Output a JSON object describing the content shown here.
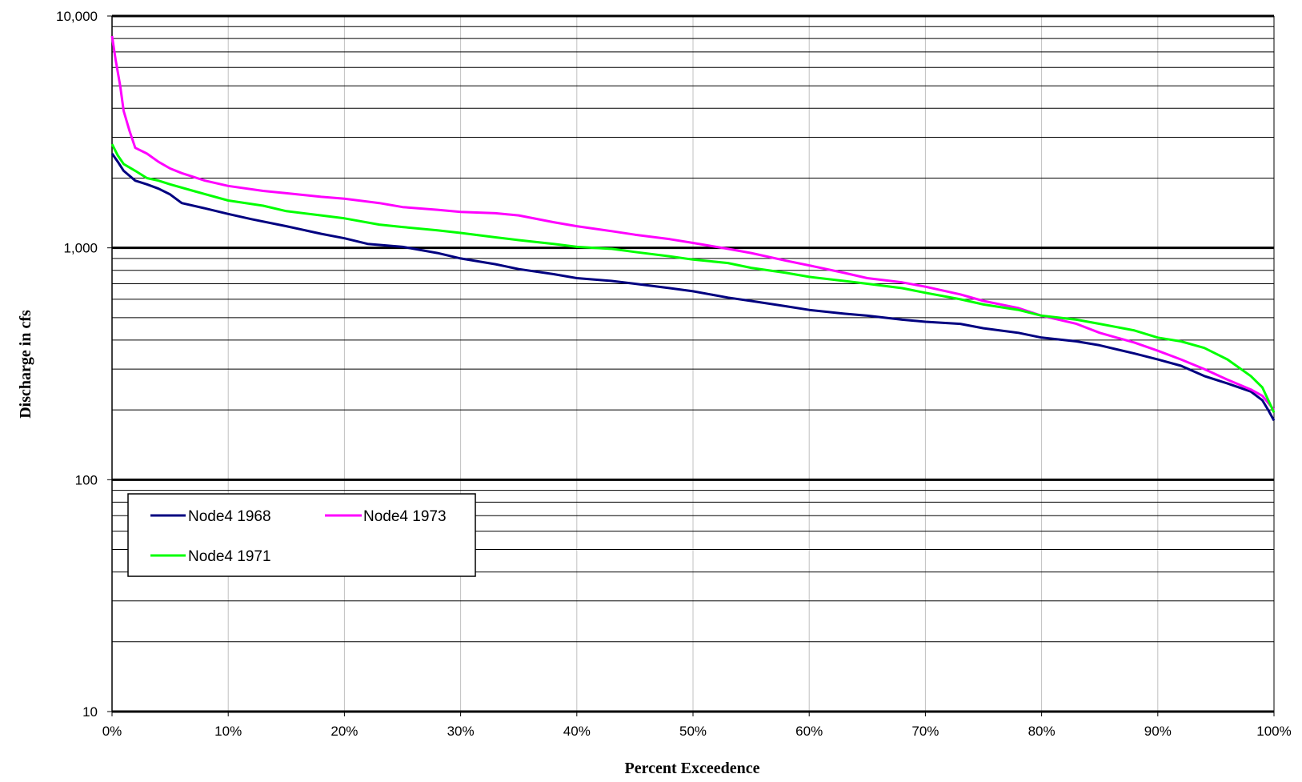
{
  "chart_data": {
    "type": "line",
    "xlabel": "Percent Exceedence",
    "ylabel": "Discharge in cfs",
    "x_scale": "linear",
    "y_scale": "log",
    "xlim": [
      0,
      100
    ],
    "ylim": [
      10,
      10000
    ],
    "x_ticks": [
      0,
      10,
      20,
      30,
      40,
      50,
      60,
      70,
      80,
      90,
      100
    ],
    "x_tick_labels": [
      "0%",
      "10%",
      "20%",
      "30%",
      "40%",
      "50%",
      "60%",
      "70%",
      "80%",
      "90%",
      "100%"
    ],
    "y_ticks": [
      10,
      100,
      1000,
      10000
    ],
    "y_tick_labels": [
      "10",
      "100",
      "1,000",
      "10,000"
    ],
    "grid": true,
    "legend_position": "bottom-left",
    "series": [
      {
        "name": "Node4 1968",
        "color": "#000080",
        "x": [
          0,
          0.5,
          1,
          2,
          3,
          4,
          5,
          6,
          8,
          10,
          12,
          15,
          18,
          20,
          22,
          25,
          28,
          30,
          33,
          35,
          38,
          40,
          43,
          45,
          48,
          50,
          53,
          55,
          58,
          60,
          63,
          65,
          68,
          70,
          73,
          75,
          78,
          80,
          83,
          85,
          88,
          90,
          92,
          94,
          96,
          98,
          99,
          99.5,
          100
        ],
        "y": [
          2550,
          2350,
          2150,
          1950,
          1880,
          1800,
          1700,
          1560,
          1480,
          1400,
          1330,
          1240,
          1150,
          1100,
          1040,
          1010,
          950,
          900,
          850,
          810,
          770,
          740,
          720,
          700,
          670,
          650,
          610,
          590,
          560,
          540,
          520,
          510,
          490,
          480,
          470,
          450,
          430,
          410,
          395,
          380,
          350,
          330,
          310,
          280,
          260,
          240,
          220,
          200,
          180
        ]
      },
      {
        "name": "Node4 1973",
        "color": "#ff00ff",
        "x": [
          0,
          0.3,
          0.7,
          1,
          1.5,
          2,
          3,
          4,
          5,
          6,
          8,
          10,
          13,
          15,
          18,
          20,
          23,
          25,
          28,
          30,
          33,
          35,
          38,
          40,
          43,
          45,
          48,
          50,
          53,
          55,
          58,
          60,
          63,
          65,
          68,
          70,
          73,
          75,
          78,
          80,
          83,
          85,
          88,
          90,
          92,
          94,
          96,
          98,
          99,
          100
        ],
        "y": [
          8200,
          6500,
          5000,
          3900,
          3200,
          2700,
          2550,
          2350,
          2200,
          2100,
          1950,
          1850,
          1760,
          1720,
          1660,
          1630,
          1560,
          1500,
          1460,
          1430,
          1410,
          1380,
          1290,
          1240,
          1180,
          1140,
          1090,
          1050,
          990,
          950,
          880,
          840,
          780,
          740,
          710,
          680,
          630,
          590,
          550,
          510,
          470,
          430,
          390,
          360,
          330,
          300,
          270,
          245,
          230,
          200
        ]
      },
      {
        "name": "Node4 1971",
        "color": "#00ff00",
        "x": [
          0,
          0.5,
          1,
          2,
          3,
          4,
          5,
          7,
          10,
          13,
          15,
          18,
          20,
          23,
          25,
          28,
          30,
          33,
          35,
          38,
          40,
          43,
          45,
          48,
          50,
          53,
          55,
          58,
          60,
          63,
          65,
          68,
          70,
          73,
          75,
          78,
          80,
          83,
          85,
          88,
          90,
          92,
          94,
          96,
          98,
          99,
          100
        ],
        "y": [
          2800,
          2500,
          2300,
          2150,
          2000,
          1950,
          1880,
          1760,
          1600,
          1520,
          1440,
          1380,
          1340,
          1260,
          1230,
          1190,
          1160,
          1110,
          1080,
          1040,
          1010,
          990,
          960,
          920,
          890,
          860,
          820,
          780,
          750,
          720,
          700,
          670,
          640,
          600,
          570,
          540,
          510,
          490,
          470,
          440,
          410,
          395,
          370,
          330,
          280,
          250,
          195
        ]
      }
    ]
  }
}
